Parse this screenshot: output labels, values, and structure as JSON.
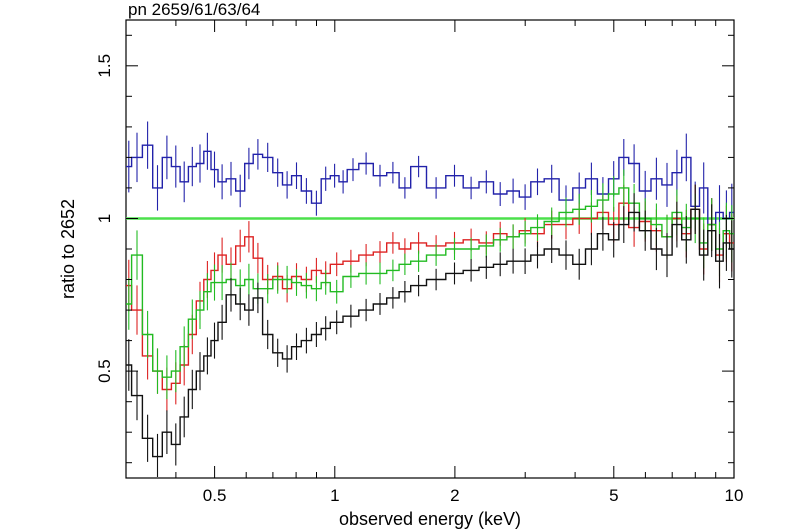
{
  "chart_data": {
    "type": "line",
    "title": "pn 2659/61/63/64",
    "xlabel": "observed energy (keV)",
    "ylabel": "ratio to 2652",
    "x_scale": "log",
    "xlim": [
      0.3,
      10
    ],
    "ylim": [
      0.15,
      1.65
    ],
    "x_ticks": [
      0.5,
      1,
      2,
      5,
      10
    ],
    "x_tick_labels": [
      "0.5",
      "1",
      "2",
      "5",
      "10"
    ],
    "y_ticks": [
      0.5,
      1,
      1.5
    ],
    "y_tick_labels": [
      "0.5",
      "1",
      "1.5"
    ],
    "reference_line": {
      "y": 1.0,
      "color": "#4ce04c"
    },
    "grid": false,
    "legend": "none",
    "series": [
      {
        "color": "#2222aa",
        "x": [
          0.3,
          0.32,
          0.34,
          0.36,
          0.38,
          0.4,
          0.42,
          0.44,
          0.46,
          0.48,
          0.5,
          0.52,
          0.55,
          0.58,
          0.61,
          0.64,
          0.68,
          0.72,
          0.76,
          0.8,
          0.85,
          0.9,
          0.95,
          1.0,
          1.05,
          1.1,
          1.2,
          1.3,
          1.4,
          1.5,
          1.6,
          1.8,
          2.0,
          2.2,
          2.4,
          2.6,
          2.8,
          3.0,
          3.2,
          3.5,
          3.8,
          4.1,
          4.4,
          4.7,
          5.0,
          5.3,
          5.6,
          6.0,
          6.4,
          6.8,
          7.2,
          7.6,
          8.0,
          8.4,
          8.8,
          9.2,
          9.6,
          9.9
        ],
        "y": [
          1.17,
          1.2,
          1.24,
          1.1,
          1.2,
          1.17,
          1.12,
          1.17,
          1.18,
          1.22,
          1.16,
          1.12,
          1.13,
          1.09,
          1.18,
          1.21,
          1.2,
          1.15,
          1.11,
          1.14,
          1.09,
          1.05,
          1.13,
          1.14,
          1.12,
          1.16,
          1.18,
          1.14,
          1.15,
          1.1,
          1.17,
          1.1,
          1.14,
          1.1,
          1.12,
          1.08,
          1.09,
          1.07,
          1.12,
          1.13,
          1.06,
          1.1,
          1.13,
          1.08,
          1.13,
          1.2,
          1.18,
          1.09,
          1.13,
          1.11,
          1.15,
          1.2,
          1.04,
          1.1,
          0.98,
          1.02,
          1.0,
          1.02
        ]
      },
      {
        "color": "#dd2222",
        "x": [
          0.3,
          0.32,
          0.34,
          0.36,
          0.38,
          0.4,
          0.42,
          0.44,
          0.46,
          0.48,
          0.5,
          0.52,
          0.55,
          0.58,
          0.61,
          0.64,
          0.68,
          0.72,
          0.76,
          0.8,
          0.85,
          0.9,
          0.95,
          1.0,
          1.1,
          1.2,
          1.3,
          1.4,
          1.5,
          1.6,
          1.8,
          2.0,
          2.2,
          2.4,
          2.6,
          2.8,
          3.0,
          3.2,
          3.5,
          3.8,
          4.1,
          4.4,
          4.7,
          5.0,
          5.3,
          5.6,
          6.0,
          6.4,
          6.8,
          7.2,
          7.6,
          8.0,
          8.4,
          8.8,
          9.2,
          9.6,
          9.9
        ],
        "y": [
          0.78,
          0.7,
          0.55,
          0.5,
          0.44,
          0.46,
          0.52,
          0.62,
          0.73,
          0.8,
          0.83,
          0.88,
          0.85,
          0.91,
          0.94,
          0.87,
          0.8,
          0.81,
          0.77,
          0.81,
          0.8,
          0.83,
          0.82,
          0.85,
          0.86,
          0.88,
          0.89,
          0.92,
          0.9,
          0.92,
          0.91,
          0.92,
          0.93,
          0.92,
          0.95,
          0.94,
          0.96,
          0.95,
          0.98,
          0.98,
          1.0,
          1.0,
          1.02,
          0.98,
          1.05,
          0.97,
          0.99,
          0.96,
          0.94,
          1.0,
          0.95,
          1.03,
          0.9,
          0.98,
          0.88,
          0.95,
          0.92
        ]
      },
      {
        "color": "#22bb22",
        "x": [
          0.3,
          0.32,
          0.34,
          0.36,
          0.38,
          0.4,
          0.42,
          0.44,
          0.46,
          0.48,
          0.5,
          0.52,
          0.55,
          0.58,
          0.61,
          0.64,
          0.68,
          0.72,
          0.76,
          0.8,
          0.85,
          0.9,
          0.95,
          1.0,
          1.1,
          1.2,
          1.3,
          1.4,
          1.5,
          1.6,
          1.8,
          2.0,
          2.2,
          2.4,
          2.6,
          2.8,
          3.0,
          3.2,
          3.5,
          3.8,
          4.1,
          4.4,
          4.7,
          5.0,
          5.3,
          5.6,
          6.0,
          6.4,
          6.8,
          7.2,
          7.6,
          8.0,
          8.4,
          8.8,
          9.2,
          9.6,
          9.9
        ],
        "y": [
          0.72,
          0.88,
          0.62,
          0.5,
          0.48,
          0.5,
          0.58,
          0.67,
          0.7,
          0.76,
          0.79,
          0.79,
          0.8,
          0.78,
          0.8,
          0.77,
          0.77,
          0.8,
          0.8,
          0.79,
          0.78,
          0.77,
          0.79,
          0.76,
          0.81,
          0.82,
          0.82,
          0.83,
          0.85,
          0.86,
          0.88,
          0.9,
          0.9,
          0.91,
          0.93,
          0.94,
          0.95,
          0.97,
          0.99,
          1.02,
          1.03,
          1.04,
          1.06,
          1.08,
          1.1,
          1.05,
          1.0,
          0.98,
          0.94,
          1.02,
          0.97,
          1.0,
          0.92,
          0.98,
          0.9,
          0.96,
          0.95
        ]
      },
      {
        "color": "#111111",
        "x": [
          0.3,
          0.32,
          0.34,
          0.36,
          0.38,
          0.4,
          0.42,
          0.44,
          0.46,
          0.48,
          0.5,
          0.52,
          0.55,
          0.58,
          0.61,
          0.64,
          0.68,
          0.72,
          0.76,
          0.8,
          0.85,
          0.9,
          0.95,
          1.0,
          1.1,
          1.2,
          1.3,
          1.4,
          1.5,
          1.6,
          1.8,
          2.0,
          2.2,
          2.4,
          2.6,
          2.8,
          3.0,
          3.2,
          3.5,
          3.8,
          4.1,
          4.4,
          4.7,
          5.0,
          5.3,
          5.6,
          6.0,
          6.4,
          6.8,
          7.2,
          7.6,
          8.0,
          8.4,
          8.8,
          9.2,
          9.6,
          9.9
        ],
        "y": [
          0.52,
          0.42,
          0.28,
          0.22,
          0.3,
          0.26,
          0.35,
          0.44,
          0.5,
          0.55,
          0.6,
          0.66,
          0.75,
          0.72,
          0.7,
          0.74,
          0.62,
          0.56,
          0.54,
          0.58,
          0.6,
          0.62,
          0.64,
          0.66,
          0.68,
          0.7,
          0.72,
          0.74,
          0.76,
          0.78,
          0.8,
          0.82,
          0.83,
          0.84,
          0.85,
          0.86,
          0.86,
          0.88,
          0.9,
          0.88,
          0.85,
          0.9,
          0.95,
          0.93,
          0.98,
          1.02,
          0.96,
          0.9,
          0.88,
          0.98,
          0.93,
          1.03,
          0.88,
          0.96,
          0.86,
          0.92,
          0.9
        ]
      }
    ]
  }
}
